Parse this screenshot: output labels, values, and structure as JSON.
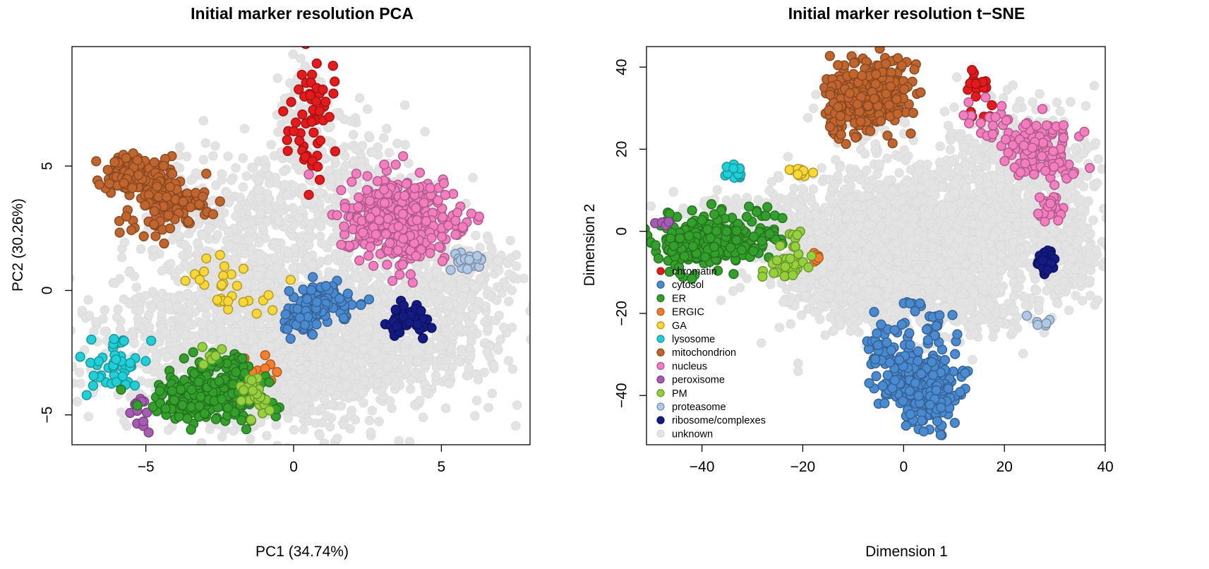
{
  "chart_data": [
    {
      "type": "scatter",
      "title": "Initial marker resolution PCA",
      "xlabel": "PC1 (34.74%)",
      "ylabel": "PC2 (30.26%)",
      "xlim": [
        -7.5,
        8
      ],
      "ylim": [
        -6.2,
        9.8
      ],
      "xticks": [
        -5,
        0,
        5
      ],
      "yticks": [
        -5,
        0,
        5
      ],
      "grid": false,
      "legend": "none",
      "series": [
        {
          "name": "unknown",
          "color": "#e3e3e3",
          "clusters": [
            {
              "x": 0.0,
              "y": -2.0,
              "sx": 2.6,
              "sy": 1.8,
              "n": 1500
            },
            {
              "x": -1.6,
              "y": 1.8,
              "sx": 1.6,
              "sy": 1.9,
              "n": 380
            },
            {
              "x": 1.2,
              "y": 4.2,
              "sx": 1.5,
              "sy": 1.5,
              "n": 280
            },
            {
              "x": 3.5,
              "y": -1.5,
              "sx": 1.9,
              "sy": 1.3,
              "n": 450
            },
            {
              "x": 5.8,
              "y": 0.6,
              "sx": 1.0,
              "sy": 0.7,
              "n": 150
            },
            {
              "x": -4.5,
              "y": -2.5,
              "sx": 1.4,
              "sy": 1.3,
              "n": 160
            },
            {
              "x": 0.4,
              "y": 7.2,
              "sx": 0.5,
              "sy": 1.0,
              "n": 60
            },
            {
              "x": -3.5,
              "y": 3.5,
              "sx": 0.9,
              "sy": 1.1,
              "n": 60
            },
            {
              "x": -1.0,
              "y": -4.4,
              "sx": 1.2,
              "sy": 0.5,
              "n": 100
            }
          ]
        },
        {
          "name": "chromatin",
          "color": "#e41a1c",
          "clusters": [
            {
              "x": 0.6,
              "y": 6.8,
              "sx": 0.45,
              "sy": 1.2,
              "n": 55
            }
          ]
        },
        {
          "name": "mitochondrion",
          "color": "#c1652e",
          "clusters": [
            {
              "x": -5.4,
              "y": 4.7,
              "sx": 0.5,
              "sy": 0.4,
              "n": 140
            },
            {
              "x": -4.1,
              "y": 3.6,
              "sx": 0.6,
              "sy": 0.45,
              "n": 90
            },
            {
              "x": -4.9,
              "y": 2.7,
              "sx": 0.5,
              "sy": 0.5,
              "n": 20
            }
          ]
        },
        {
          "name": "nucleus",
          "color": "#f37dbf",
          "clusters": [
            {
              "x": 3.6,
              "y": 2.8,
              "sx": 0.95,
              "sy": 0.8,
              "n": 420
            }
          ]
        },
        {
          "name": "proteasome",
          "color": "#afc8e6",
          "clusters": [
            {
              "x": 5.7,
              "y": 1.2,
              "sx": 0.4,
              "sy": 0.15,
              "n": 22
            }
          ]
        },
        {
          "name": "GA",
          "color": "#f9d737",
          "clusters": [
            {
              "x": -2.2,
              "y": 0.1,
              "sx": 0.75,
              "sy": 0.55,
              "n": 30
            }
          ]
        },
        {
          "name": "cytosol",
          "color": "#4a8ad0",
          "clusters": [
            {
              "x": 1.0,
              "y": -0.5,
              "sx": 0.5,
              "sy": 0.35,
              "n": 95
            },
            {
              "x": 0.3,
              "y": -1.2,
              "sx": 0.3,
              "sy": 0.45,
              "n": 45
            }
          ]
        },
        {
          "name": "ribosome/complexes",
          "color": "#141b84",
          "clusters": [
            {
              "x": 3.8,
              "y": -1.2,
              "sx": 0.4,
              "sy": 0.3,
              "n": 45
            }
          ]
        },
        {
          "name": "lysosome",
          "color": "#20d0d8",
          "clusters": [
            {
              "x": -6.1,
              "y": -3.1,
              "sx": 0.5,
              "sy": 0.8,
              "n": 45
            }
          ]
        },
        {
          "name": "peroxisome",
          "color": "#a85bb5",
          "clusters": [
            {
              "x": -5.1,
              "y": -4.9,
              "sx": 0.2,
              "sy": 0.35,
              "n": 14
            }
          ]
        },
        {
          "name": "ERGIC",
          "color": "#f57e2c",
          "clusters": [
            {
              "x": -1.2,
              "y": -3.3,
              "sx": 0.5,
              "sy": 0.4,
              "n": 14
            }
          ]
        },
        {
          "name": "ER",
          "color": "#33a02c",
          "clusters": [
            {
              "x": -3.0,
              "y": -4.3,
              "sx": 0.9,
              "sy": 0.45,
              "n": 260
            },
            {
              "x": -2.2,
              "y": -3.3,
              "sx": 0.6,
              "sy": 0.4,
              "n": 60
            }
          ]
        },
        {
          "name": "PM",
          "color": "#95d13c",
          "clusters": [
            {
              "x": -1.4,
              "y": -4.1,
              "sx": 0.3,
              "sy": 0.45,
              "n": 26
            },
            {
              "x": -2.8,
              "y": -2.7,
              "sx": 0.15,
              "sy": 0.3,
              "n": 6
            }
          ]
        }
      ]
    },
    {
      "type": "scatter",
      "title": "Initial marker resolution t−SNE",
      "xlabel": "Dimension 1",
      "ylabel": "Dimension 2",
      "xlim": [
        -51,
        40
      ],
      "ylim": [
        -52,
        45
      ],
      "xticks": [
        -40,
        -20,
        0,
        20,
        40
      ],
      "yticks": [
        -40,
        -20,
        0,
        20,
        40
      ],
      "xticklabels": [
        "−40",
        "−20",
        "0",
        "20",
        "40"
      ],
      "yticklabels": [
        "−40",
        "−20",
        "0",
        "20",
        "40"
      ],
      "grid": false,
      "legend": "bottom-left",
      "legend_entries": [
        "chromatin",
        "cytosol",
        "ER",
        "ERGIC",
        "GA",
        "lysosome",
        "mitochondrion",
        "nucleus",
        "peroxisome",
        "PM",
        "proteasome",
        "ribosome/complexes",
        "unknown"
      ],
      "series": [
        {
          "name": "unknown",
          "color": "#e3e3e3",
          "clusters": [
            {
              "x": -5,
              "y": -3,
              "sx": 11,
              "sy": 9,
              "n": 1300
            },
            {
              "x": 12,
              "y": -3,
              "sx": 11,
              "sy": 8,
              "n": 900
            },
            {
              "x": 22,
              "y": 15,
              "sx": 9,
              "sy": 7,
              "n": 450
            },
            {
              "x": 33,
              "y": -5,
              "sx": 3,
              "sy": 6,
              "n": 150
            },
            {
              "x": -10,
              "y": -15,
              "sx": 5,
              "sy": 4,
              "n": 250
            },
            {
              "x": 14,
              "y": -20,
              "sx": 6,
              "sy": 3,
              "n": 120
            },
            {
              "x": -30,
              "y": 4,
              "sx": 7,
              "sy": 3,
              "n": 120
            },
            {
              "x": -9,
              "y": 30,
              "sx": 4,
              "sy": 5,
              "n": 80
            }
          ]
        },
        {
          "name": "chromatin",
          "color": "#e41a1c",
          "clusters": [
            {
              "x": 14.5,
              "y": 35.5,
              "sx": 1.0,
              "sy": 1.6,
              "n": 16
            },
            {
              "x": 16.5,
              "y": 28.5,
              "sx": 2.5,
              "sy": 1.2,
              "n": 5
            }
          ]
        },
        {
          "name": "cytosol",
          "color": "#4a8ad0",
          "clusters": [
            {
              "x": 4,
              "y": -38,
              "sx": 3.5,
              "sy": 5,
              "n": 260
            },
            {
              "x": -3,
              "y": -29,
              "sx": 2.5,
              "sy": 5,
              "n": 60
            },
            {
              "x": 8,
              "y": -23,
              "sx": 2.5,
              "sy": 2,
              "n": 12
            },
            {
              "x": 2,
              "y": -18,
              "sx": 2,
              "sy": 1,
              "n": 7
            }
          ]
        },
        {
          "name": "ER",
          "color": "#33a02c",
          "clusters": [
            {
              "x": -39,
              "y": -2.5,
              "sx": 4.5,
              "sy": 3,
              "n": 300
            },
            {
              "x": -28,
              "y": 1,
              "sx": 2.5,
              "sy": 3,
              "n": 30
            }
          ]
        },
        {
          "name": "ERGIC",
          "color": "#f57e2c",
          "clusters": [
            {
              "x": -17.5,
              "y": -6.5,
              "sx": 0.8,
              "sy": 0.8,
              "n": 8
            }
          ]
        },
        {
          "name": "GA",
          "color": "#f9d737",
          "clusters": [
            {
              "x": -20.5,
              "y": 14.5,
              "sx": 0.8,
              "sy": 0.9,
              "n": 12
            }
          ]
        },
        {
          "name": "lysosome",
          "color": "#20d0d8",
          "clusters": [
            {
              "x": -33,
              "y": 14,
              "sx": 1.0,
              "sy": 1.0,
              "n": 12
            }
          ]
        },
        {
          "name": "mitochondrion",
          "color": "#c1652e",
          "clusters": [
            {
              "x": -7,
              "y": 33,
              "sx": 4,
              "sy": 4,
              "n": 320
            },
            {
              "x": -13,
              "y": 28,
              "sx": 1.0,
              "sy": 3,
              "n": 30
            }
          ]
        },
        {
          "name": "nucleus",
          "color": "#f37dbf",
          "clusters": [
            {
              "x": 27,
              "y": 19,
              "sx": 3.5,
              "sy": 4,
              "n": 110
            },
            {
              "x": 29,
              "y": 6,
              "sx": 1.3,
              "sy": 3,
              "n": 25
            },
            {
              "x": 18,
              "y": 26,
              "sx": 4,
              "sy": 3,
              "n": 25
            }
          ]
        },
        {
          "name": "peroxisome",
          "color": "#a85bb5",
          "clusters": [
            {
              "x": -47.5,
              "y": 1.8,
              "sx": 1.2,
              "sy": 0.4,
              "n": 5
            }
          ]
        },
        {
          "name": "PM",
          "color": "#95d13c",
          "clusters": [
            {
              "x": -23,
              "y": -9,
              "sx": 2,
              "sy": 2,
              "n": 32
            },
            {
              "x": -22,
              "y": -1,
              "sx": 0.7,
              "sy": 1.5,
              "n": 8
            }
          ]
        },
        {
          "name": "proteasome",
          "color": "#afc8e6",
          "clusters": [
            {
              "x": 26.5,
              "y": -22,
              "sx": 1.0,
              "sy": 0.5,
              "n": 6
            }
          ]
        },
        {
          "name": "ribosome/complexes",
          "color": "#141b84",
          "clusters": [
            {
              "x": 28,
              "y": -7.5,
              "sx": 1.2,
              "sy": 1.8,
              "n": 30
            }
          ]
        }
      ]
    }
  ]
}
